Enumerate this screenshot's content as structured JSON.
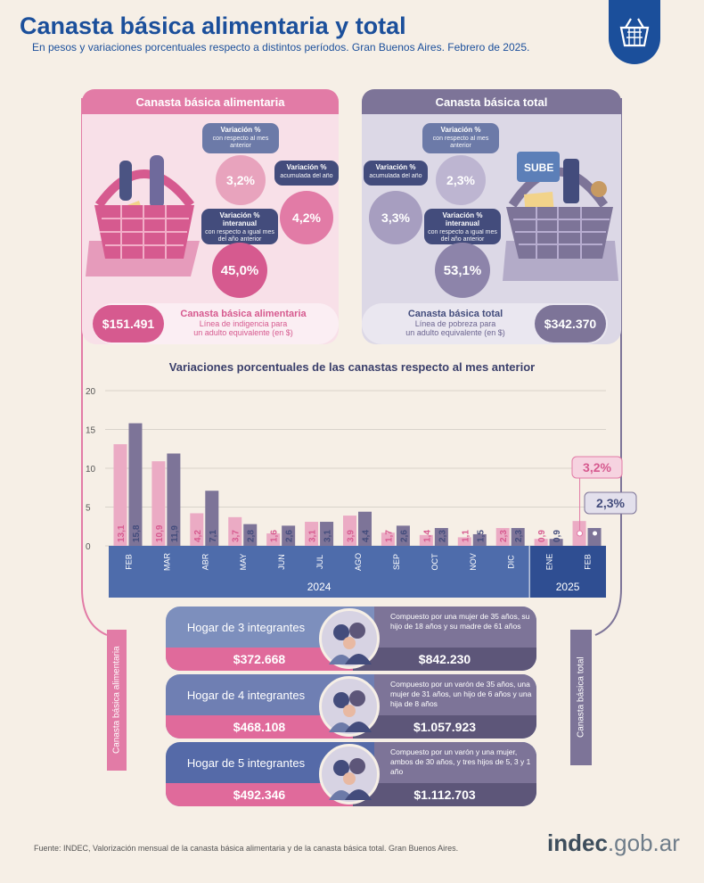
{
  "header": {
    "title": "Canasta básica alimentaria y total",
    "subtitle": "En pesos y variaciones porcentuales respecto a distintos períodos. Gran Buenos Aires. Febrero de 2025."
  },
  "colors": {
    "pink": "#e27ba6",
    "pink_dark": "#d65a8f",
    "pink_light": "#f2c7d8",
    "purple": "#7d7498",
    "purple_light": "#b3abc8",
    "navy": "#434c7c",
    "blue": "#4e6cab"
  },
  "cba": {
    "header": "Canasta básica alimentaria",
    "mensual": {
      "title": "Variación %",
      "sub": "con respecto al mes anterior",
      "value": "3,2%"
    },
    "acumulada": {
      "title": "Variación %",
      "sub": "acumulada del año",
      "value": "4,2%"
    },
    "interanual": {
      "title": "Variación % interanual",
      "sub": "con respecto a igual mes del año anterior",
      "value": "45,0%"
    },
    "price": "$151.491",
    "name": "Canasta básica alimentaria",
    "line1": "Línea de indigencia para",
    "line2": "un adulto equivalente (en $)"
  },
  "cbt": {
    "header": "Canasta básica total",
    "mensual": {
      "title": "Variación %",
      "sub": "con respecto al mes anterior",
      "value": "2,3%"
    },
    "acumulada": {
      "title": "Variación %",
      "sub": "acumulada del año",
      "value": "3,3%"
    },
    "interanual": {
      "title": "Variación % interanual",
      "sub": "con respecto a igual mes del año anterior",
      "value": "53,1%"
    },
    "price": "$342.370",
    "name": "Canasta básica total",
    "line1": "Línea de pobreza para",
    "line2": "un adulto equivalente (en $)",
    "basket_label": "SUBE"
  },
  "chart_data": {
    "type": "bar",
    "title": "Variaciones porcentuales de las canastas respecto al mes anterior",
    "categories": [
      "FEB",
      "MAR",
      "ABR",
      "MAY",
      "JUN",
      "JUL",
      "AGO",
      "SEP",
      "OCT",
      "NOV",
      "DIC",
      "ENE",
      "FEB"
    ],
    "years": [
      {
        "label": "2024",
        "from": 0,
        "to": 10
      },
      {
        "label": "2025",
        "from": 11,
        "to": 12
      }
    ],
    "series": [
      {
        "key": "cba",
        "values": [
          13.1,
          10.9,
          4.2,
          3.7,
          1.6,
          3.1,
          3.9,
          1.7,
          1.4,
          1.1,
          2.3,
          0.9,
          3.2
        ],
        "labels": [
          "13,1",
          "10,9",
          "4,2",
          "3,7",
          "1,6",
          "3,1",
          "3,9",
          "1,7",
          "1,4",
          "1,1",
          "2,3",
          "0,9",
          "3,2%"
        ]
      },
      {
        "key": "cbt",
        "values": [
          15.8,
          11.9,
          7.1,
          2.8,
          2.6,
          3.1,
          4.4,
          2.6,
          2.3,
          1.5,
          2.3,
          0.9,
          2.3
        ],
        "labels": [
          "15,8",
          "11,9",
          "7,1",
          "2,8",
          "2,6",
          "3,1",
          "4,4",
          "2,6",
          "2,3",
          "1,5",
          "2,3",
          "0,9",
          "2,3%"
        ]
      }
    ],
    "ylim": [
      0,
      20
    ],
    "yticks": [
      0,
      5,
      10,
      15,
      20
    ],
    "ytick_labels": [
      "0",
      "5",
      "10",
      "15",
      "20"
    ],
    "grid": true
  },
  "side_labels": {
    "left": "Canasta básica alimentaria",
    "right": "Canasta básica total"
  },
  "households": [
    {
      "name": "Hogar de 3 integrantes",
      "cba": "$372.668",
      "cbt": "$842.230",
      "desc": "Compuesto por una mujer de 35 años, su hijo de 18 años y su madre de 61 años"
    },
    {
      "name": "Hogar de 4 integrantes",
      "cba": "$468.108",
      "cbt": "$1.057.923",
      "desc": "Compuesto por un varón de 35 años, una mujer de 31 años, un hijo de 6 años y una hija de 8 años"
    },
    {
      "name": "Hogar de 5 integrantes",
      "cba": "$492.346",
      "cbt": "$1.112.703",
      "desc": "Compuesto por un varón y una mujer, ambos de 30 años, y tres hijos de 5, 3 y 1 año"
    }
  ],
  "footer": {
    "source": "Fuente: INDEC, Valorización mensual de la canasta básica alimentaria y de la canasta básica total. Gran Buenos Aires.",
    "brand_bold": "indec",
    "brand_rest": ".gob.ar"
  }
}
